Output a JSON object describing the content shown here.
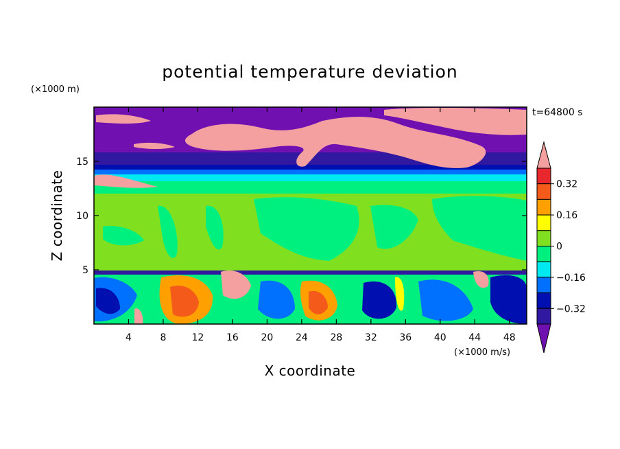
{
  "chart_data": {
    "type": "heatmap",
    "title": "potential temperature deviation",
    "xlabel": "X coordinate",
    "ylabel": "Z coordinate",
    "x_unit": "(×1000 m/s)",
    "y_unit": "(×1000 m)",
    "time_label": "t=64800 s",
    "xlim": [
      0,
      50
    ],
    "ylim": [
      0,
      20
    ],
    "x_ticks": [
      4,
      8,
      12,
      16,
      20,
      24,
      28,
      32,
      36,
      40,
      44,
      48
    ],
    "y_ticks": [
      5,
      10,
      15
    ],
    "colorbar": {
      "tick_labels": [
        "0.32",
        "0.16",
        "0",
        "−0.16",
        "−0.32"
      ],
      "tick_values": [
        0.32,
        0.16,
        0,
        -0.16,
        -0.32
      ],
      "levels": [
        {
          "min": 0.4,
          "max": null,
          "color": "#f4a0a0"
        },
        {
          "min": 0.32,
          "max": 0.4,
          "color": "#e8282c"
        },
        {
          "min": 0.24,
          "max": 0.32,
          "color": "#f45a1a"
        },
        {
          "min": 0.16,
          "max": 0.24,
          "color": "#ffa000"
        },
        {
          "min": 0.08,
          "max": 0.16,
          "color": "#ffff00"
        },
        {
          "min": 0.0,
          "max": 0.08,
          "color": "#80e020"
        },
        {
          "min": -0.08,
          "max": 0.0,
          "color": "#00f080"
        },
        {
          "min": -0.16,
          "max": -0.08,
          "color": "#00e8f0"
        },
        {
          "min": -0.24,
          "max": -0.16,
          "color": "#0070ff"
        },
        {
          "min": -0.32,
          "max": -0.24,
          "color": "#0010b0"
        },
        {
          "min": -0.4,
          "max": -0.32,
          "color": "#3018a0"
        },
        {
          "min": null,
          "max": -0.4,
          "color": "#7010b0"
        }
      ]
    }
  }
}
